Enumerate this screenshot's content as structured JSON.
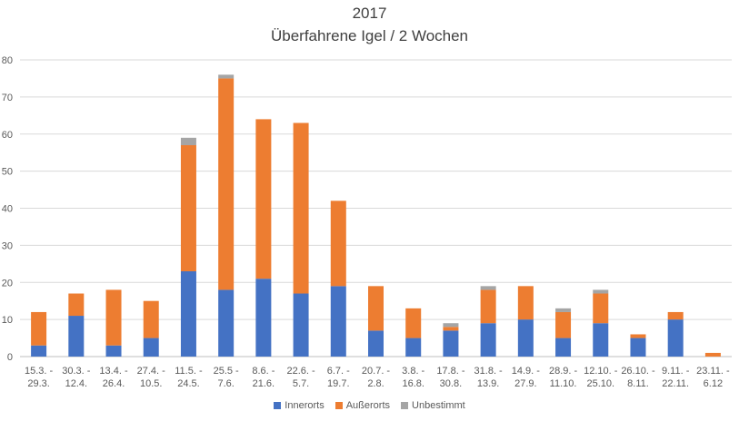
{
  "chart_data": {
    "type": "bar",
    "stacked": true,
    "title": "2017",
    "subtitle": "Überfahrene Igel / 2 Wochen",
    "categories": [
      [
        "15.3. -",
        "29.3."
      ],
      [
        "30.3. -",
        "12.4."
      ],
      [
        "13.4. -",
        "26.4."
      ],
      [
        "27.4. -",
        "10.5."
      ],
      [
        "11.5. -",
        "24.5."
      ],
      [
        "25.5 -",
        "7.6."
      ],
      [
        "8.6. -",
        "21.6."
      ],
      [
        "22.6. -",
        "5.7."
      ],
      [
        "6.7. -",
        "19.7."
      ],
      [
        "20.7. -",
        "2.8."
      ],
      [
        "3.8. -",
        "16.8."
      ],
      [
        "17.8. -",
        "30.8."
      ],
      [
        "31.8. -",
        "13.9."
      ],
      [
        "14.9. -",
        "27.9."
      ],
      [
        "28.9. -",
        "11.10."
      ],
      [
        "12.10. -",
        "25.10."
      ],
      [
        "26.10. -",
        "8.11."
      ],
      [
        "9.11. -",
        "22.11."
      ],
      [
        "23.11. -",
        "6.12"
      ]
    ],
    "series": [
      {
        "name": "Innerorts",
        "color": "#4472C4",
        "values": [
          3,
          11,
          3,
          5,
          23,
          18,
          21,
          17,
          19,
          7,
          5,
          7,
          9,
          10,
          5,
          9,
          5,
          10,
          0
        ]
      },
      {
        "name": "Außerorts",
        "color": "#ED7D31",
        "values": [
          9,
          6,
          15,
          10,
          34,
          57,
          43,
          46,
          23,
          12,
          8,
          1,
          9,
          9,
          7,
          8,
          1,
          2,
          1
        ]
      },
      {
        "name": "Unbestimmt",
        "color": "#A5A5A5",
        "values": [
          0,
          0,
          0,
          0,
          2,
          1,
          0,
          0,
          0,
          0,
          0,
          1,
          1,
          0,
          1,
          1,
          0,
          0,
          0
        ]
      }
    ],
    "ylim": [
      0,
      80
    ],
    "yticks": [
      0,
      10,
      20,
      30,
      40,
      50,
      60,
      70,
      80
    ],
    "grid": true,
    "legend_position": "bottom"
  }
}
